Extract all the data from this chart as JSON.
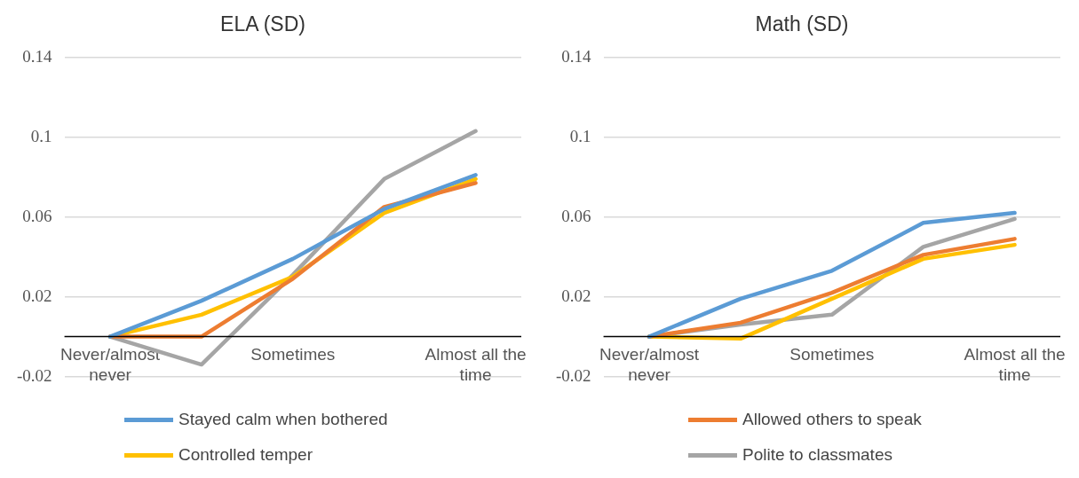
{
  "chart_data": [
    {
      "type": "line",
      "title": "ELA (SD)",
      "categories": [
        "Never/almost never",
        null,
        "Sometimes",
        null,
        "Almost all the time"
      ],
      "series": [
        {
          "name": "Stayed calm when bothered",
          "color": "#5b9bd5",
          "values": [
            0,
            0.018,
            0.039,
            0.064,
            0.081
          ]
        },
        {
          "name": "Allowed others to speak",
          "color": "#ed7d31",
          "values": [
            0,
            0,
            0.029,
            0.065,
            0.077
          ]
        },
        {
          "name": "Controlled temper",
          "color": "#ffc000",
          "values": [
            0,
            0.011,
            0.03,
            0.062,
            0.079
          ]
        },
        {
          "name": "Polite to classmates",
          "color": "#a5a5a5",
          "values": [
            0,
            -0.014,
            0.031,
            0.079,
            0.103
          ]
        }
      ],
      "ylim": [
        -0.02,
        0.14
      ],
      "yticks": [
        -0.02,
        0.02,
        0.06,
        0.1,
        0.14
      ],
      "grid": "y",
      "legend": "bottom",
      "marker": "none",
      "ref_lines": [
        {
          "axis": "y",
          "value": 0,
          "color": "#000000"
        }
      ]
    },
    {
      "type": "line",
      "title": "Math (SD)",
      "categories": [
        "Never/almost never",
        null,
        "Sometimes",
        null,
        "Almost all the time"
      ],
      "series": [
        {
          "name": "Stayed calm when bothered",
          "color": "#5b9bd5",
          "values": [
            0,
            0.019,
            0.033,
            0.057,
            0.062
          ]
        },
        {
          "name": "Allowed others to speak",
          "color": "#ed7d31",
          "values": [
            0,
            0.007,
            0.022,
            0.041,
            0.049
          ]
        },
        {
          "name": "Controlled temper",
          "color": "#ffc000",
          "values": [
            0,
            -0.001,
            0.019,
            0.039,
            0.046
          ]
        },
        {
          "name": "Polite to classmates",
          "color": "#a5a5a5",
          "values": [
            0,
            0.006,
            0.011,
            0.045,
            0.059
          ]
        }
      ],
      "ylim": [
        -0.02,
        0.14
      ],
      "yticks": [
        -0.02,
        0.02,
        0.06,
        0.1,
        0.14
      ],
      "grid": "y",
      "legend": "bottom",
      "marker": "none",
      "ref_lines": [
        {
          "axis": "y",
          "value": 0,
          "color": "#000000"
        }
      ]
    }
  ]
}
